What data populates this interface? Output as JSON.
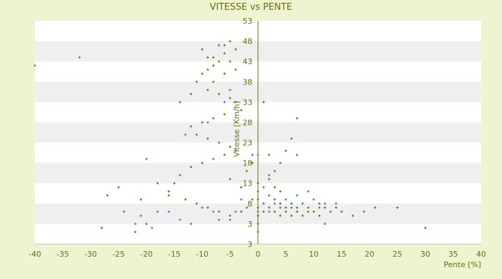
{
  "chart_data": {
    "type": "scatter",
    "title": "VITESSE vs PENTE",
    "xlabel": "Pente [%]",
    "ylabel": "Vitesse [Km/h]",
    "xlim": [
      -40,
      40
    ],
    "ylim": [
      -2,
      53
    ],
    "x_ticks": [
      "-40",
      "-35",
      "-30",
      "-25",
      "-20",
      "-15",
      "-10",
      "-5",
      "0",
      "5",
      "10",
      "15",
      "20",
      "25",
      "30",
      "35",
      "40"
    ],
    "y_ticks": [
      "53",
      "48",
      "43",
      "38",
      "33",
      "28",
      "23",
      "18",
      "13",
      "8",
      "3",
      "3"
    ],
    "grid": "horizontal bands",
    "legend": "none",
    "colors": {
      "background": "#eef3d0",
      "plot_band_light": "#ffffff",
      "plot_band_dark": "#efefef",
      "axis": "#6b6a10",
      "series_a": "#6b7d10",
      "series_b": "#2a8fd8"
    },
    "series": [
      {
        "points": [
          [
            -10,
            46
          ],
          [
            -9,
            44
          ],
          [
            -8,
            42
          ],
          [
            -7,
            47
          ],
          [
            -6,
            45
          ],
          [
            -5,
            43
          ],
          [
            -4,
            41
          ],
          [
            -6,
            40
          ],
          [
            -8,
            38
          ],
          [
            -9,
            36
          ],
          [
            -7,
            35
          ],
          [
            -5,
            34
          ],
          [
            -4,
            33
          ],
          [
            -3,
            31
          ],
          [
            -6,
            30
          ],
          [
            -8,
            29
          ],
          [
            -10,
            28
          ],
          [
            -12,
            27
          ],
          [
            -11,
            25
          ],
          [
            -9,
            24
          ],
          [
            -7,
            23
          ],
          [
            -5,
            22
          ],
          [
            -4,
            21
          ],
          [
            -6,
            20
          ],
          [
            -8,
            19
          ],
          [
            -10,
            18
          ],
          [
            -12,
            17
          ],
          [
            -14,
            15
          ],
          [
            -15,
            13
          ],
          [
            -16,
            11
          ],
          [
            -13,
            9
          ],
          [
            -11,
            8
          ],
          [
            -9,
            7
          ],
          [
            -7,
            6
          ],
          [
            -5,
            5
          ],
          [
            -3,
            6
          ],
          [
            -2,
            7
          ],
          [
            -1,
            9
          ],
          [
            -3,
            12
          ],
          [
            -5,
            14
          ],
          [
            -2,
            16
          ],
          [
            -1,
            18
          ],
          [
            0,
            13
          ],
          [
            0,
            11
          ],
          [
            0,
            9
          ],
          [
            0,
            7
          ],
          [
            0,
            5
          ],
          [
            0,
            3
          ],
          [
            0,
            1
          ],
          [
            1,
            6
          ],
          [
            1,
            8
          ],
          [
            2,
            10
          ],
          [
            2,
            7
          ],
          [
            3,
            9
          ],
          [
            3,
            6
          ],
          [
            4,
            8
          ],
          [
            4,
            5
          ],
          [
            5,
            7
          ],
          [
            5,
            6
          ],
          [
            6,
            8
          ],
          [
            6,
            5
          ],
          [
            7,
            7
          ],
          [
            7,
            6
          ],
          [
            8,
            8
          ],
          [
            8,
            5
          ],
          [
            9,
            7
          ],
          [
            9,
            6
          ],
          [
            10,
            6
          ],
          [
            11,
            8
          ],
          [
            11,
            5
          ],
          [
            12,
            7
          ],
          [
            13,
            6
          ],
          [
            14,
            7
          ],
          [
            15,
            6
          ],
          [
            17,
            5
          ],
          [
            19,
            6
          ],
          [
            21,
            7
          ],
          [
            25,
            7
          ],
          [
            30,
            2
          ],
          [
            12,
            3
          ],
          [
            2,
            14
          ],
          [
            3,
            16
          ],
          [
            4,
            18
          ],
          [
            5,
            21
          ],
          [
            6,
            24
          ],
          [
            7,
            29
          ],
          [
            1,
            33
          ],
          [
            2,
            20
          ],
          [
            3,
            12
          ],
          [
            4,
            11
          ],
          [
            -22,
            1
          ],
          [
            -20,
            3
          ],
          [
            -25,
            12
          ],
          [
            -27,
            10
          ],
          [
            -18,
            13
          ],
          [
            -16,
            10
          ],
          [
            -12,
            3
          ],
          [
            -28,
            2
          ],
          [
            -24,
            6
          ],
          [
            -21,
            9
          ],
          [
            -14,
            33
          ],
          [
            -12,
            35
          ],
          [
            -11,
            38
          ],
          [
            -10,
            40
          ],
          [
            -9,
            41
          ],
          [
            -8,
            44
          ],
          [
            -7,
            43
          ],
          [
            -6,
            47
          ],
          [
            -5,
            48
          ],
          [
            -4,
            46
          ]
        ]
      },
      {
        "points": [
          [
            -40,
            42
          ],
          [
            -32,
            44
          ],
          [
            -20,
            19
          ],
          [
            -22,
            3
          ],
          [
            -21,
            5
          ],
          [
            -19,
            2
          ],
          [
            -18,
            6
          ],
          [
            -16,
            6
          ],
          [
            -14,
            4
          ],
          [
            -10,
            7
          ],
          [
            -7,
            4
          ],
          [
            -5,
            4
          ],
          [
            -4,
            6
          ],
          [
            -2,
            7
          ],
          [
            0,
            6
          ],
          [
            1,
            8
          ],
          [
            2,
            6
          ],
          [
            3,
            8
          ],
          [
            4,
            7
          ],
          [
            5,
            9
          ],
          [
            6,
            7
          ],
          [
            7,
            10
          ],
          [
            8,
            8
          ],
          [
            9,
            11
          ],
          [
            10,
            9
          ],
          [
            11,
            7
          ],
          [
            12,
            8
          ],
          [
            13,
            6
          ],
          [
            14,
            8
          ],
          [
            7,
            20
          ],
          [
            -5,
            36
          ],
          [
            -6,
            33
          ],
          [
            -9,
            28
          ],
          [
            -13,
            25
          ],
          [
            -1,
            20
          ],
          [
            0,
            20
          ],
          [
            1,
            12
          ],
          [
            2,
            15
          ],
          [
            -3,
            9
          ],
          [
            -8,
            6
          ]
        ]
      }
    ]
  }
}
